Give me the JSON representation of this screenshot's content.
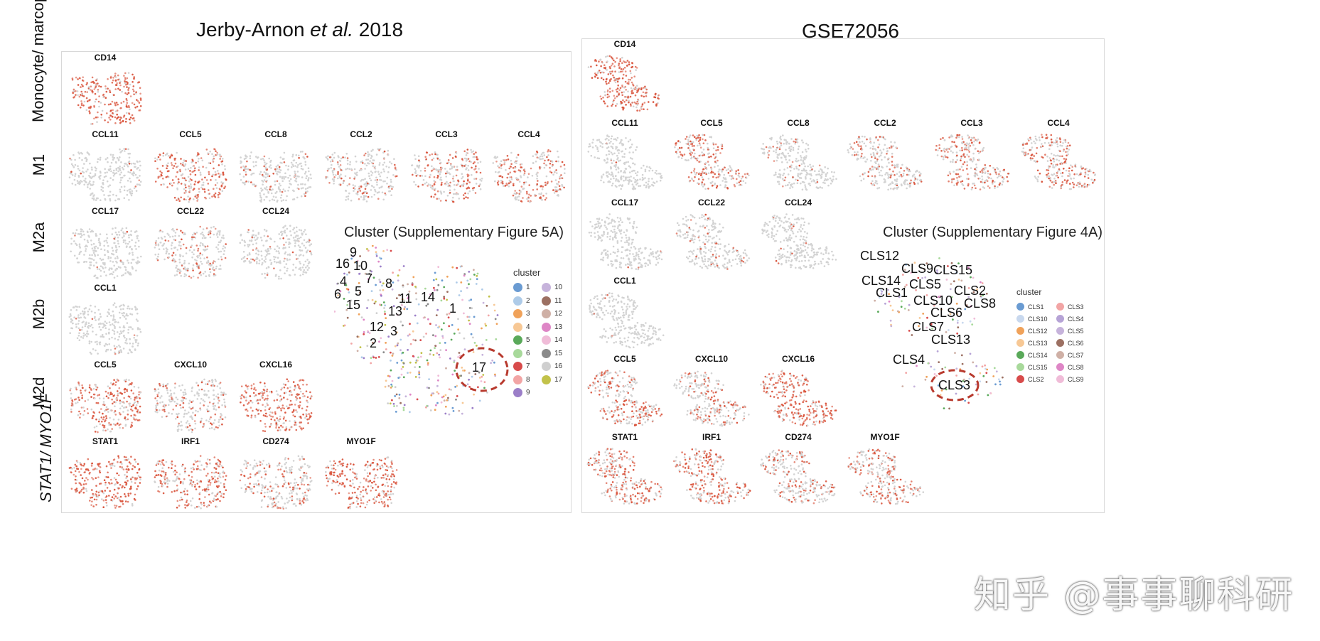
{
  "left_panel": {
    "title_prefix": "Jerby-Arnon ",
    "title_italic": "et al.",
    "title_suffix": " 2018",
    "row_labels": {
      "mono": "Monocyte/ marcophage",
      "m1": "M1",
      "m2a": "M2a",
      "m2b": "M2b",
      "m2d": "M2d",
      "stat": "STAT1/ MYO1F"
    },
    "plots": {
      "CD14": "CD14",
      "CCL11": "CCL11",
      "CCL5": "CCL5",
      "CCL8": "CCL8",
      "CCL2": "CCL2",
      "CCL3": "CCL3",
      "CCL4": "CCL4",
      "CCL17": "CCL17",
      "CCL22": "CCL22",
      "CCL24": "CCL24",
      "CCL1": "CCL1",
      "CCL5b": "CCL5",
      "CXCL10": "CXCL10",
      "CXCL16": "CXCL16",
      "STAT1": "STAT1",
      "IRF1": "IRF1",
      "CD274": "CD274",
      "MYO1F": "MYO1F"
    },
    "cluster": {
      "title": "Cluster (Supplementary Figure 5A)",
      "labels": [
        "9",
        "16",
        "10",
        "4",
        "7",
        "8",
        "6",
        "5",
        "11",
        "14",
        "15",
        "1",
        "13",
        "12",
        "3",
        "2",
        "17"
      ],
      "legend_title": "cluster",
      "legend_left": [
        "1",
        "2",
        "3",
        "4",
        "5",
        "6",
        "7",
        "8",
        "9"
      ],
      "legend_right": [
        "10",
        "11",
        "12",
        "13",
        "14",
        "15",
        "16",
        "17"
      ],
      "legend_left_colors": [
        "#6a9bd2",
        "#aecbe8",
        "#f0a25a",
        "#f7c895",
        "#5aa95a",
        "#a8d99b",
        "#d84b4b",
        "#f2a5a5",
        "#9b7ec8"
      ],
      "legend_right_colors": [
        "#c6b3db",
        "#9c7062",
        "#cfb0a6",
        "#de86c6",
        "#f0bcd8",
        "#8a8a8a",
        "#cfcfcf",
        "#c2c24a"
      ]
    }
  },
  "right_panel": {
    "title": "GSE72056",
    "plots": {
      "CD14": "CD14",
      "CCL11": "CCL11",
      "CCL5": "CCL5",
      "CCL8": "CCL8",
      "CCL2": "CCL2",
      "CCL3": "CCL3",
      "CCL4": "CCL4",
      "CCL17": "CCL17",
      "CCL22": "CCL22",
      "CCL24": "CCL24",
      "CCL1": "CCL1",
      "CCL5b": "CCL5",
      "CXCL10": "CXCL10",
      "CXCL16": "CXCL16",
      "STAT1": "STAT1",
      "IRF1": "IRF1",
      "CD274": "CD274",
      "MYO1F": "MYO1F"
    },
    "cluster": {
      "title": "Cluster (Supplementary Figure 4A)",
      "labels": [
        "CLS12",
        "CLS9",
        "CLS15",
        "CLS14",
        "CLS5",
        "CLS1",
        "CLS2",
        "CLS10",
        "CLS8",
        "CLS6",
        "CLS7",
        "CLS13",
        "CLS4",
        "CLS3"
      ],
      "legend_title": "cluster",
      "legend_left": [
        "CLS1",
        "CLS10",
        "CLS12",
        "CLS13",
        "CLS14",
        "CLS15",
        "CLS2"
      ],
      "legend_right": [
        "CLS3",
        "CLS4",
        "CLS5",
        "CLS6",
        "CLS7",
        "CLS8",
        "CLS9"
      ],
      "legend_left_colors": [
        "#6a9bd2",
        "#c8d8ee",
        "#f0a25a",
        "#f7c895",
        "#5aa95a",
        "#a8d99b",
        "#d84b4b"
      ],
      "legend_right_colors": [
        "#f2a5a5",
        "#b6a3d6",
        "#c6b3db",
        "#9c7062",
        "#cfb0a6",
        "#de86c6",
        "#f0bcd8"
      ]
    }
  },
  "watermark": "知乎 @事事聊科研",
  "colors": {
    "expr": "#d9533b",
    "background_dot": "#d3d3d3"
  }
}
